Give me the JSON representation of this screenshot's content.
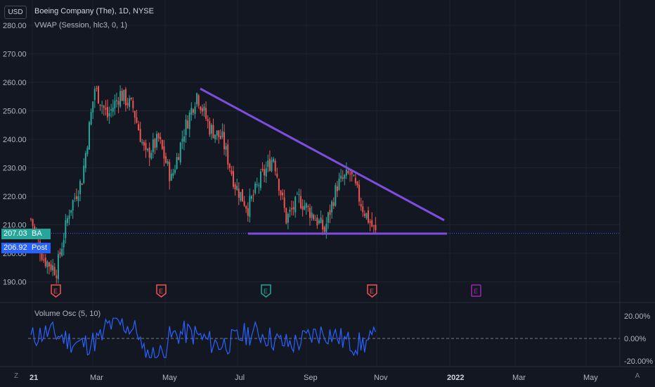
{
  "header": {
    "currency": "USD",
    "symbol_title": "Boeing Company (The), 1D, NYSE",
    "indicator": "VWAP (Session, hlc3, 0, 1)"
  },
  "oscillator": {
    "title": "Volume Osc (5, 10)",
    "y_ticks": [
      "20.00%",
      "0.00%",
      "-20.00%"
    ]
  },
  "price_tags": {
    "last_price": "207.03",
    "last_label": "BA",
    "post_price": "206.92",
    "post_label": "Post"
  },
  "controls": {
    "zoom_label": "Z",
    "auto_label": "A"
  },
  "colors": {
    "background": "#131722",
    "up": "#26a69a",
    "down": "#ef5350",
    "trendline": "#7e4de0",
    "oscillator": "#2962ff",
    "post_tag": "#2962ff",
    "last_tag": "#26a69a"
  },
  "chart_data": {
    "type": "candlestick",
    "title": "Boeing Company (The), 1D, NYSE",
    "ylabel": "USD",
    "ylim": [
      185,
      283
    ],
    "y_ticks": [
      190,
      200,
      210,
      220,
      230,
      240,
      250,
      260,
      270,
      280
    ],
    "y_tick_labels": [
      "190.00",
      "200.00",
      "210.00",
      "220.00",
      "230.00",
      "240.00",
      "250.00",
      "260.00",
      "270.00",
      "280.00"
    ],
    "x_ticks": [
      "21",
      "Mar",
      "May",
      "Jul",
      "Sep",
      "Nov",
      "2022",
      "Mar",
      "May"
    ],
    "grid": true,
    "series_close": [
      {
        "month": "Jan",
        "close": 212
      },
      {
        "month": "early Feb",
        "close": 198
      },
      {
        "month": "mid Feb",
        "close": 194
      },
      {
        "month": "late Feb",
        "close": 215
      },
      {
        "month": "early Mar",
        "close": 226
      },
      {
        "month": "mid Mar",
        "close": 258
      },
      {
        "month": "late Mar",
        "close": 248
      },
      {
        "month": "early Apr",
        "close": 256
      },
      {
        "month": "mid Apr",
        "close": 251
      },
      {
        "month": "late Apr",
        "close": 234
      },
      {
        "month": "early May",
        "close": 240
      },
      {
        "month": "mid May",
        "close": 226
      },
      {
        "month": "late May",
        "close": 243
      },
      {
        "month": "early Jun",
        "close": 256
      },
      {
        "month": "mid Jun",
        "close": 244
      },
      {
        "month": "late Jun",
        "close": 240
      },
      {
        "month": "early Jul",
        "close": 224
      },
      {
        "month": "mid Jul",
        "close": 216
      },
      {
        "month": "late Jul",
        "close": 226
      },
      {
        "month": "early Aug",
        "close": 234
      },
      {
        "month": "mid Aug",
        "close": 212
      },
      {
        "month": "late Aug",
        "close": 219
      },
      {
        "month": "early Sep",
        "close": 214
      },
      {
        "month": "mid Sep",
        "close": 208
      },
      {
        "month": "late Sep",
        "close": 224
      },
      {
        "month": "early Oct",
        "close": 228
      },
      {
        "month": "mid Oct",
        "close": 216
      },
      {
        "month": "late Oct",
        "close": 207
      }
    ],
    "last_price": 207.03,
    "post_price": 206.92,
    "support_level": 207,
    "earnings_markers": [
      {
        "month": "late Jan",
        "label": "E",
        "status": "miss"
      },
      {
        "month": "late Apr",
        "label": "E",
        "status": "miss"
      },
      {
        "month": "late Jul",
        "label": "E",
        "status": "beat"
      },
      {
        "month": "late Oct",
        "label": "E",
        "status": "miss"
      },
      {
        "month": "late Jan 2022",
        "label": "E",
        "status": "upcoming"
      }
    ],
    "oscillator": {
      "name": "Volume Osc (5, 10)",
      "ylim": [
        -20,
        20
      ],
      "y_ticks": [
        20,
        0,
        -20
      ]
    }
  }
}
